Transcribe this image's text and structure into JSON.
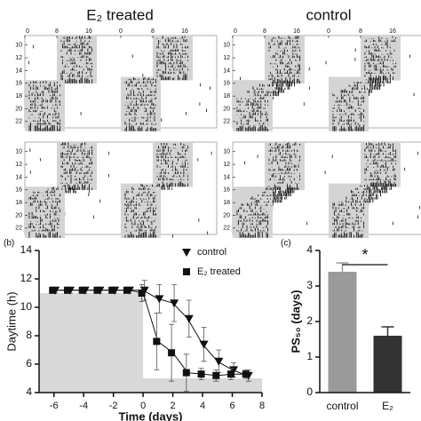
{
  "actograms": {
    "titles": [
      "E₂ treated",
      "control"
    ],
    "xticks": [
      0,
      8,
      16
    ],
    "yticks": [
      10,
      12,
      14,
      16,
      18,
      20,
      22
    ]
  },
  "chart_data": [
    {
      "type": "line",
      "panel_label": "(b)",
      "xlabel": "Time (days)",
      "ylabel": "Daytime (h)",
      "x": [
        -6,
        -5,
        -4,
        -3,
        -2,
        -1,
        0,
        1,
        2,
        3,
        4,
        5,
        6,
        7
      ],
      "series": [
        {
          "name": "control",
          "marker": "triangle",
          "color": "#111111",
          "values": [
            11.2,
            11.2,
            11.2,
            11.2,
            11.2,
            11.2,
            11.2,
            10.6,
            10.3,
            9.2,
            7.4,
            6.2,
            5.6,
            5.2
          ],
          "errors": [
            0.2,
            0.2,
            0.2,
            0.2,
            0.2,
            0.2,
            0.7,
            1.0,
            1.3,
            1.3,
            1.2,
            0.8,
            0.5,
            0.4
          ]
        },
        {
          "name": "E₂ treated",
          "marker": "square",
          "color": "#111111",
          "values": [
            11.2,
            11.2,
            11.2,
            11.2,
            11.2,
            11.2,
            11.0,
            7.6,
            6.8,
            5.4,
            5.3,
            5.2,
            5.3,
            5.3
          ],
          "errors": [
            0.2,
            0.2,
            0.2,
            0.2,
            0.2,
            0.2,
            0.6,
            2.0,
            2.0,
            1.3,
            0.4,
            0.4,
            0.4,
            0.3
          ]
        }
      ],
      "shade": {
        "x": [
          -7,
          0,
          0,
          8
        ],
        "y": [
          11,
          11,
          5,
          5
        ],
        "color": "#d9d9d9"
      },
      "xlim": [
        -7,
        8
      ],
      "xticks": [
        -6,
        -4,
        -2,
        0,
        2,
        4,
        6,
        8
      ],
      "ylim": [
        4,
        14
      ],
      "yticks": [
        4,
        6,
        8,
        10,
        12,
        14
      ],
      "legend": "upper right"
    },
    {
      "type": "bar",
      "panel_label": "(c)",
      "ylabel": "PS₅₀ (days)",
      "categories": [
        "control",
        "E₂"
      ],
      "values": [
        3.4,
        1.6
      ],
      "errors": [
        0.25,
        0.25
      ],
      "colors": [
        "#9a9a9a",
        "#333333"
      ],
      "ylim": [
        0,
        4
      ],
      "yticks": [
        0,
        1,
        2,
        3,
        4
      ],
      "annotation": "*"
    }
  ]
}
